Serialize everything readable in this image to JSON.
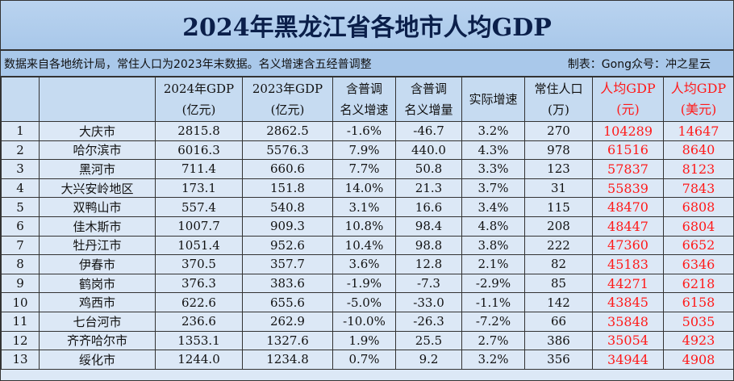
{
  "title": "2024年黑龙江省各地市人均GDP",
  "note_left": "数据来自各地统计局，常住人口为2023年末数据。名义增速含五经普调整",
  "note_right": "制表：Gong众号：冲之星云",
  "accent_color": "#ff1a1a",
  "columns": [
    {
      "line1": "",
      "line2": ""
    },
    {
      "line1": "",
      "line2": ""
    },
    {
      "line1": "2024年GDP",
      "line2": "(亿元)"
    },
    {
      "line1": "2023年GDP",
      "line2": "(亿元)"
    },
    {
      "line1": "含普调",
      "line2": "名义增速"
    },
    {
      "line1": "含普调",
      "line2": "名义增量"
    },
    {
      "line1": "实际增速",
      "line2": ""
    },
    {
      "line1": "常住人口",
      "line2": "(万)"
    },
    {
      "line1": "人均GDP",
      "line2": "(元)"
    },
    {
      "line1": "人均GDP",
      "line2": "(美元)"
    }
  ],
  "rows": [
    [
      "1",
      "大庆市",
      "2815.8",
      "2862.5",
      "-1.6%",
      "-46.7",
      "3.2%",
      "270",
      "104289",
      "14647"
    ],
    [
      "2",
      "哈尔滨市",
      "6016.3",
      "5576.3",
      "7.9%",
      "440.0",
      "4.3%",
      "978",
      "61516",
      "8640"
    ],
    [
      "3",
      "黑河市",
      "711.4",
      "660.6",
      "7.7%",
      "50.8",
      "3.3%",
      "123",
      "57837",
      "8123"
    ],
    [
      "4",
      "大兴安岭地区",
      "173.1",
      "151.8",
      "14.0%",
      "21.3",
      "3.7%",
      "31",
      "55839",
      "7843"
    ],
    [
      "5",
      "双鸭山市",
      "557.4",
      "540.8",
      "3.1%",
      "16.6",
      "3.4%",
      "115",
      "48470",
      "6808"
    ],
    [
      "6",
      "佳木斯市",
      "1007.7",
      "909.3",
      "10.8%",
      "98.4",
      "4.8%",
      "208",
      "48447",
      "6804"
    ],
    [
      "7",
      "牡丹江市",
      "1051.4",
      "952.6",
      "10.4%",
      "98.8",
      "3.8%",
      "222",
      "47360",
      "6652"
    ],
    [
      "8",
      "伊春市",
      "370.5",
      "357.7",
      "3.6%",
      "12.8",
      "2.1%",
      "82",
      "45183",
      "6346"
    ],
    [
      "9",
      "鹤岗市",
      "376.3",
      "383.6",
      "-1.9%",
      "-7.3",
      "-2.9%",
      "85",
      "44271",
      "6218"
    ],
    [
      "10",
      "鸡西市",
      "622.6",
      "655.6",
      "-5.0%",
      "-33.0",
      "-1.1%",
      "142",
      "43845",
      "6158"
    ],
    [
      "11",
      "七台河市",
      "236.6",
      "262.9",
      "-10.0%",
      "-26.3",
      "-7.2%",
      "66",
      "35848",
      "5035"
    ],
    [
      "12",
      "齐齐哈尔市",
      "1353.1",
      "1327.6",
      "1.9%",
      "25.5",
      "2.7%",
      "386",
      "35054",
      "4923"
    ],
    [
      "13",
      "绥化市",
      "1244.0",
      "1234.8",
      "0.7%",
      "9.2",
      "3.2%",
      "356",
      "34944",
      "4908"
    ]
  ]
}
